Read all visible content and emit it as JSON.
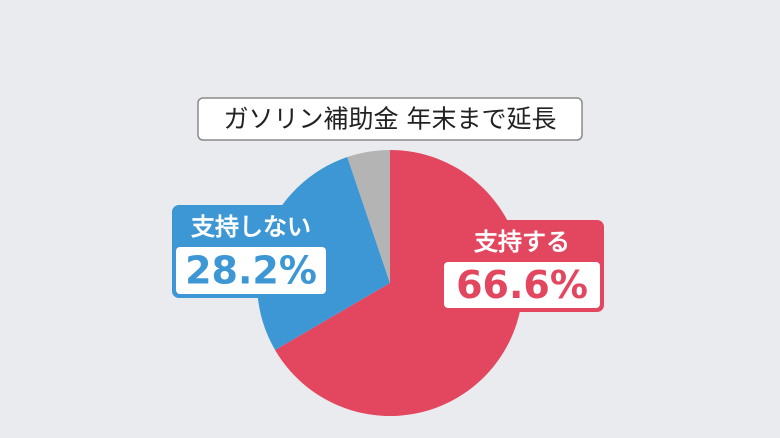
{
  "chart_data": {
    "type": "pie",
    "title": "ガソリン補助金 年末まで延長",
    "categories": [
      "支持する",
      "支持しない",
      null
    ],
    "values": [
      66.6,
      28.2,
      5.2
    ],
    "value_labels": [
      "66.6%",
      "28.2%",
      null
    ],
    "colors": [
      "#e3465f",
      "#3d97d5",
      "#b4b4b4"
    ]
  }
}
